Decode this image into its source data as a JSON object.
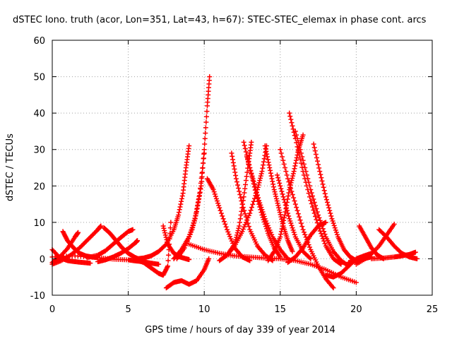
{
  "chart_data": {
    "type": "scatter",
    "title": "dSTEC Iono. truth (acor, Lon=351, Lat=43, h=67): STEC-STEC_elemax in phase cont. arcs",
    "xlabel": "GPS time / hours of day 339 of year 2014",
    "ylabel": "dSTEC  / TECUs",
    "xlim": [
      0,
      25
    ],
    "ylim": [
      -10,
      60
    ],
    "xticks": [
      "0",
      "5",
      "10",
      "15",
      "20",
      "25"
    ],
    "yticks": [
      "-10",
      "0",
      "10",
      "20",
      "30",
      "40",
      "50",
      "60"
    ],
    "grid": true,
    "marker": "plus",
    "color": "#ff0000",
    "series": [
      {
        "x": [
          0.0,
          0.5,
          1.0,
          1.5,
          2.0,
          2.5
        ],
        "y": [
          2.5,
          0.3,
          -0.5,
          -0.8,
          -1.0,
          -1.2
        ]
      },
      {
        "x": [
          0.0,
          0.6,
          1.2,
          1.8,
          2.4,
          3.0,
          3.2
        ],
        "y": [
          -1.5,
          -0.5,
          1.0,
          3.0,
          5.5,
          8.0,
          9.0
        ]
      },
      {
        "x": [
          0.7,
          1.0,
          1.4,
          1.8,
          2.2,
          2.6,
          3.0
        ],
        "y": [
          7.5,
          5.0,
          3.0,
          1.5,
          0.8,
          0.5,
          0.3
        ]
      },
      {
        "x": [
          0.0,
          0.5,
          1.0,
          1.5,
          1.7
        ],
        "y": [
          -1.0,
          0.5,
          2.8,
          6.0,
          7.2
        ]
      },
      {
        "x": [
          0.0,
          1.5,
          3.0,
          4.0,
          5.0,
          5.5,
          6.0,
          6.5,
          7.0
        ],
        "y": [
          0.5,
          0.8,
          0.3,
          -0.1,
          -0.3,
          -0.6,
          -0.8,
          -1.2,
          -1.5
        ]
      },
      {
        "x": [
          3.4,
          3.8,
          4.2,
          4.6,
          5.0,
          5.4,
          5.9
        ],
        "y": [
          8.5,
          7.0,
          5.0,
          3.0,
          1.5,
          0.5,
          -0.5
        ]
      },
      {
        "x": [
          3.0,
          3.5,
          4.0,
          4.5,
          5.0,
          5.5,
          5.6
        ],
        "y": [
          -0.8,
          -0.3,
          0.5,
          1.5,
          2.8,
          4.5,
          5.0
        ]
      },
      {
        "x": [
          2.3,
          3.0,
          3.5,
          4.0,
          4.5,
          5.0,
          5.3
        ],
        "y": [
          0.3,
          1.0,
          2.2,
          4.0,
          5.8,
          7.5,
          8.0
        ]
      },
      {
        "x": [
          5.6,
          6.0,
          6.5,
          7.0,
          7.5,
          8.0,
          8.3,
          8.6,
          8.8,
          9.0
        ],
        "y": [
          0.0,
          0.2,
          0.8,
          2.0,
          4.0,
          8.0,
          12.0,
          18.0,
          25.0,
          31.0
        ]
      },
      {
        "x": [
          5.5,
          6.0,
          6.5,
          7.0,
          7.3,
          7.6,
          7.8
        ],
        "y": [
          -0.3,
          -1.0,
          -2.5,
          -4.0,
          -4.5,
          -2.0,
          10.0
        ]
      },
      {
        "x": [
          7.3,
          7.6,
          8.0,
          8.4,
          8.8,
          9.0
        ],
        "y": [
          9.0,
          4.0,
          1.5,
          0.5,
          0.0,
          -0.2
        ]
      },
      {
        "x": [
          7.5,
          8.0,
          8.5,
          9.0,
          9.5,
          10.0,
          10.3
        ],
        "y": [
          -8.0,
          -6.5,
          -6.0,
          -7.0,
          -6.0,
          -3.0,
          0.0
        ]
      },
      {
        "x": [
          8.2,
          8.7,
          9.2,
          9.5,
          9.8,
          10.0,
          10.2,
          10.35
        ],
        "y": [
          0.0,
          3.0,
          8.0,
          13.0,
          20.0,
          30.0,
          42.0,
          50.0
        ]
      },
      {
        "x": [
          8.0,
          8.5,
          9.0,
          9.4,
          9.7,
          10.0
        ],
        "y": [
          0.0,
          2.5,
          6.0,
          11.0,
          18.0,
          29.0
        ]
      },
      {
        "x": [
          9.0,
          10.0,
          11.0,
          12.0,
          13.0,
          14.0,
          15.0,
          16.0,
          17.0,
          18.0,
          19.0,
          20.0
        ],
        "y": [
          4.0,
          2.5,
          1.5,
          0.8,
          0.5,
          0.2,
          0.0,
          -0.5,
          -1.5,
          -3.0,
          -5.0,
          -6.5
        ]
      },
      {
        "x": [
          10.2,
          10.6,
          11.0,
          11.5,
          12.0,
          12.5,
          13.0
        ],
        "y": [
          22.0,
          19.0,
          14.0,
          8.0,
          3.0,
          0.5,
          -0.5
        ]
      },
      {
        "x": [
          11.0,
          11.5,
          12.0,
          12.3,
          12.6,
          12.9,
          13.1
        ],
        "y": [
          -0.5,
          1.0,
          4.0,
          9.0,
          17.0,
          26.0,
          32.0
        ]
      },
      {
        "x": [
          11.8,
          12.1,
          12.5,
          13.0,
          13.5,
          14.0,
          14.5
        ],
        "y": [
          29.0,
          22.0,
          15.0,
          8.0,
          3.5,
          1.0,
          -0.5
        ]
      },
      {
        "x": [
          12.6,
          13.0,
          13.4,
          13.8,
          14.2,
          14.6,
          15.0
        ],
        "y": [
          32.0,
          25.0,
          18.0,
          12.0,
          7.0,
          3.0,
          0.5
        ]
      },
      {
        "x": [
          12.8,
          13.2,
          13.6,
          14.0,
          14.5,
          15.0,
          15.5
        ],
        "y": [
          28.0,
          22.0,
          16.0,
          11.0,
          6.0,
          2.5,
          0.0
        ]
      },
      {
        "x": [
          11.5,
          12.0,
          12.5,
          13.0,
          13.5,
          13.8,
          14.1
        ],
        "y": [
          1.0,
          3.5,
          7.5,
          12.5,
          19.0,
          24.0,
          31.0
        ]
      },
      {
        "x": [
          14.0,
          14.3,
          14.6,
          14.9,
          15.2,
          15.5,
          15.8
        ],
        "y": [
          31.0,
          25.0,
          19.0,
          14.0,
          9.0,
          5.0,
          2.0
        ]
      },
      {
        "x": [
          14.2,
          14.6,
          15.0,
          15.3,
          15.6,
          15.9,
          16.2,
          16.5
        ],
        "y": [
          -0.5,
          2.0,
          6.0,
          12.0,
          19.0,
          24.0,
          30.0,
          34.0
        ]
      },
      {
        "x": [
          15.0,
          15.5,
          16.0,
          16.5,
          17.0,
          17.5,
          18.0,
          18.5
        ],
        "y": [
          30.0,
          22.0,
          15.0,
          8.0,
          2.5,
          -2.0,
          -5.5,
          -8.0
        ]
      },
      {
        "x": [
          15.6,
          16.0,
          16.5,
          17.0,
          17.5,
          18.0,
          18.5,
          19.0
        ],
        "y": [
          40.0,
          33.0,
          24.0,
          16.0,
          9.0,
          3.5,
          0.0,
          -1.5
        ]
      },
      {
        "x": [
          16.0,
          16.5,
          17.0,
          17.5,
          18.0,
          18.5,
          19.0,
          19.5
        ],
        "y": [
          35.0,
          27.0,
          19.0,
          12.0,
          6.0,
          2.0,
          -0.5,
          -2.0
        ]
      },
      {
        "x": [
          17.2,
          17.6,
          18.0,
          18.4,
          18.8,
          19.2,
          19.6,
          20.0
        ],
        "y": [
          31.5,
          24.0,
          17.0,
          11.0,
          6.0,
          2.5,
          0.5,
          -0.5
        ]
      },
      {
        "x": [
          14.8,
          15.2,
          15.6,
          16.0,
          16.5,
          17.0
        ],
        "y": [
          23.0,
          17.0,
          11.0,
          6.0,
          2.0,
          0.0
        ]
      },
      {
        "x": [
          15.5,
          16.0,
          16.5,
          17.0,
          17.5,
          18.0
        ],
        "y": [
          -1.0,
          0.5,
          3.0,
          6.5,
          9.0,
          10.0
        ]
      },
      {
        "x": [
          18.0,
          18.5,
          19.0,
          19.5,
          20.0,
          20.5,
          21.0
        ],
        "y": [
          -4.5,
          -5.0,
          -4.0,
          -2.0,
          0.0,
          0.8,
          1.5
        ]
      },
      {
        "x": [
          20.2,
          20.6,
          21.0,
          21.4,
          21.8
        ],
        "y": [
          9.0,
          6.0,
          3.0,
          1.0,
          0.0
        ]
      },
      {
        "x": [
          20.0,
          20.8,
          21.5,
          22.0,
          22.5
        ],
        "y": [
          -1.5,
          0.5,
          3.5,
          6.5,
          9.5
        ]
      },
      {
        "x": [
          21.5,
          22.0,
          22.5,
          23.0,
          23.5,
          24.0
        ],
        "y": [
          8.0,
          6.0,
          3.5,
          1.5,
          0.5,
          0.0
        ]
      },
      {
        "x": [
          21.0,
          21.8,
          22.5,
          23.0,
          23.5,
          23.9
        ],
        "y": [
          0.0,
          0.2,
          0.5,
          0.8,
          1.2,
          1.8
        ]
      },
      {
        "x": [
          19.5,
          20.0,
          20.5,
          21.0
        ],
        "y": [
          -1.0,
          -0.5,
          0.0,
          0.5
        ]
      }
    ]
  }
}
